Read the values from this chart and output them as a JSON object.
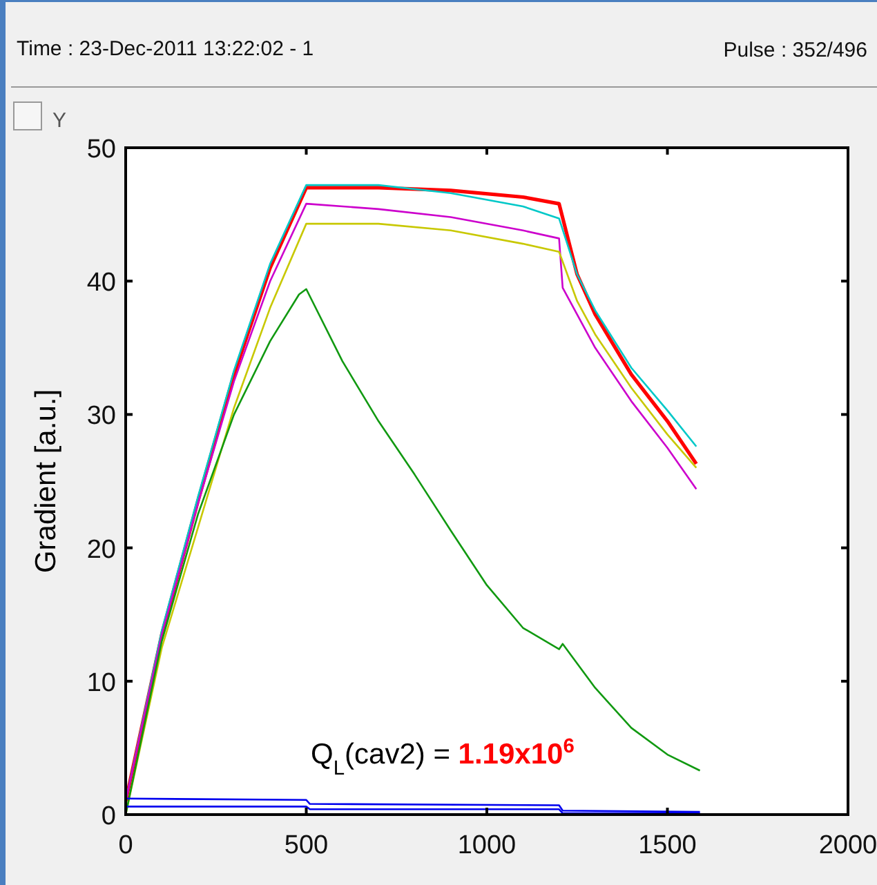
{
  "chart_data": {
    "type": "line",
    "title": "Time : 23-Dec-2011 13:22:02 - 1",
    "subtitle": "Pulse :  352/496",
    "ylabel": "Gradient  [a.u.]",
    "annotations": [
      "Y",
      "Q$_{L}$(cav2) = ",
      "1.19x10$^{6}$"
    ],
    "xlim": [
      0,
      2000
    ],
    "xticks": [
      0,
      500,
      1000,
      1500,
      2000
    ],
    "ylim": [
      0,
      50
    ],
    "yticks": [
      0,
      10,
      20,
      30,
      40,
      50
    ],
    "grid": false,
    "line_style": "solid",
    "series": [
      {
        "color": "#ff0000",
        "x": [
          0,
          100,
          200,
          300,
          400,
          500,
          700,
          900,
          1100,
          1200,
          1250,
          1300,
          1400,
          1500,
          1580
        ],
        "values": [
          1,
          13.5,
          23.5,
          33,
          41,
          47,
          47,
          46.8,
          46.3,
          45.8,
          40.5,
          37.5,
          33,
          29.5,
          26.3
        ]
      },
      {
        "color": "#00c8c8",
        "x": [
          0,
          100,
          200,
          300,
          400,
          500,
          700,
          900,
          1100,
          1200,
          1250,
          1300,
          1400,
          1500,
          1580
        ],
        "values": [
          1,
          13.8,
          23.8,
          33.3,
          41.3,
          47.2,
          47.2,
          46.6,
          45.6,
          44.7,
          40.5,
          37.8,
          33.5,
          30.3,
          27.6
        ]
      },
      {
        "color": "#cc00cc",
        "x": [
          0,
          100,
          200,
          300,
          400,
          500,
          700,
          900,
          1100,
          1200,
          1210,
          1300,
          1400,
          1500,
          1580
        ],
        "values": [
          1,
          13.5,
          23.3,
          32.5,
          40,
          45.8,
          45.4,
          44.8,
          43.8,
          43.2,
          39.5,
          35,
          31,
          27.5,
          24.4
        ]
      },
      {
        "color": "#c8c800",
        "x": [
          0,
          100,
          200,
          300,
          400,
          500,
          700,
          900,
          1100,
          1200,
          1250,
          1300,
          1400,
          1500,
          1580
        ],
        "values": [
          0,
          12.5,
          21.5,
          30.5,
          38,
          44.3,
          44.3,
          43.8,
          42.8,
          42.2,
          38.5,
          36,
          32,
          28.5,
          26
        ]
      },
      {
        "color": "#119911",
        "x": [
          0,
          100,
          200,
          300,
          400,
          480,
          500,
          600,
          700,
          800,
          900,
          1000,
          1100,
          1200,
          1210,
          1300,
          1400,
          1500,
          1590
        ],
        "values": [
          0,
          13,
          22.5,
          30,
          35.5,
          39,
          39.4,
          34,
          29.5,
          25.5,
          21.3,
          17.2,
          14,
          12.4,
          12.8,
          9.5,
          6.5,
          4.5,
          3.3
        ]
      },
      {
        "color": "#0000ee",
        "x": [
          0,
          500,
          510,
          1200,
          1210,
          1590
        ],
        "values": [
          1.2,
          1.1,
          0.8,
          0.7,
          0.3,
          0.2
        ]
      },
      {
        "color": "#0000ee",
        "x": [
          0,
          500,
          510,
          1200,
          1210,
          1590
        ],
        "values": [
          0.6,
          0.6,
          0.4,
          0.4,
          0.1,
          0.1
        ]
      }
    ]
  }
}
